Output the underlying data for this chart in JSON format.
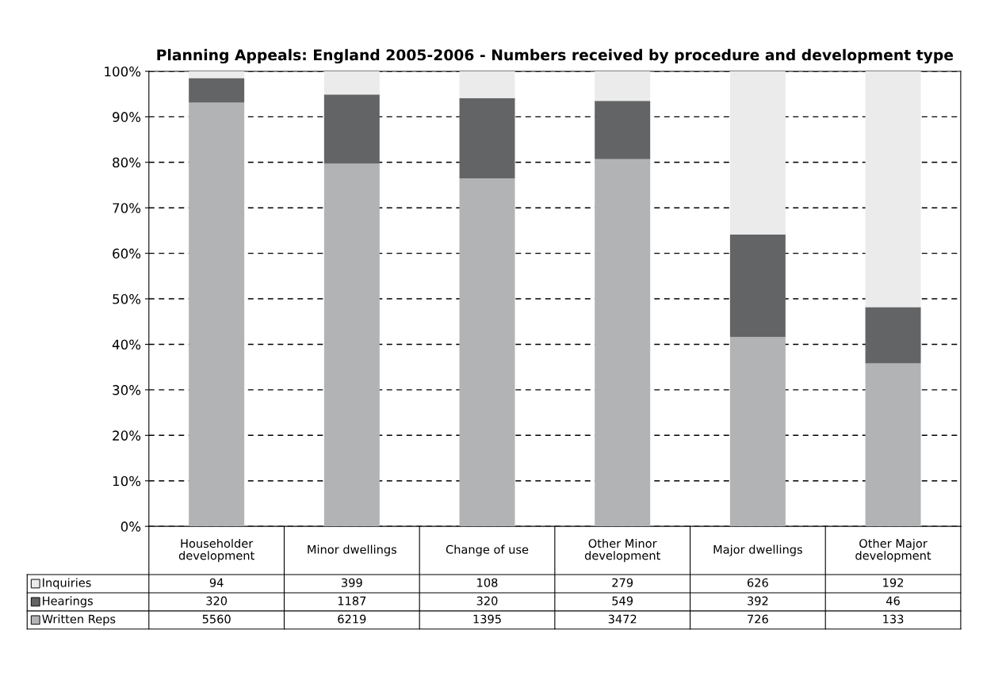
{
  "chart_data": {
    "type": "bar",
    "stacked": true,
    "title": "Planning Appeals: England 2005-2006 - Numbers received by procedure and development type",
    "categories": [
      "Householder\ndevelopment",
      "Minor dwellings",
      "Change of use",
      "Other Minor\ndevelopment",
      "Major dwellings",
      "Other Major\ndevelopment"
    ],
    "series": [
      {
        "name": "Written Reps",
        "color": "#b2b3b4",
        "values": [
          93.1,
          79.7,
          76.5,
          80.7,
          41.6,
          35.8
        ]
      },
      {
        "name": "Hearings",
        "color": "#636466",
        "values": [
          5.4,
          15.2,
          17.6,
          12.8,
          22.5,
          12.4
        ]
      },
      {
        "name": "Inquiries",
        "color": "#ebebeb",
        "values": [
          1.5,
          5.1,
          5.9,
          6.5,
          35.9,
          51.8
        ]
      }
    ],
    "annotations": [
      "94",
      "399",
      "108",
      "279",
      "626",
      "192",
      "320",
      "1187",
      "320",
      "549",
      "392",
      "46",
      "5560",
      "6219",
      "1395",
      "3472",
      "726",
      "133"
    ],
    "ylim": [
      0,
      100
    ],
    "yticks": [
      {
        "value": 0,
        "label": "0%"
      },
      {
        "value": 10,
        "label": "10%"
      },
      {
        "value": 20,
        "label": "20%"
      },
      {
        "value": 30,
        "label": "30%"
      },
      {
        "value": 40,
        "label": "40%"
      },
      {
        "value": 50,
        "label": "50%"
      },
      {
        "value": 60,
        "label": "60%"
      },
      {
        "value": 70,
        "label": "70%"
      },
      {
        "value": 80,
        "label": "80%"
      },
      {
        "value": 90,
        "label": "90%"
      },
      {
        "value": 100,
        "label": "100%"
      }
    ],
    "grid": "y",
    "line_style": "dashed",
    "legend": "bottom"
  }
}
